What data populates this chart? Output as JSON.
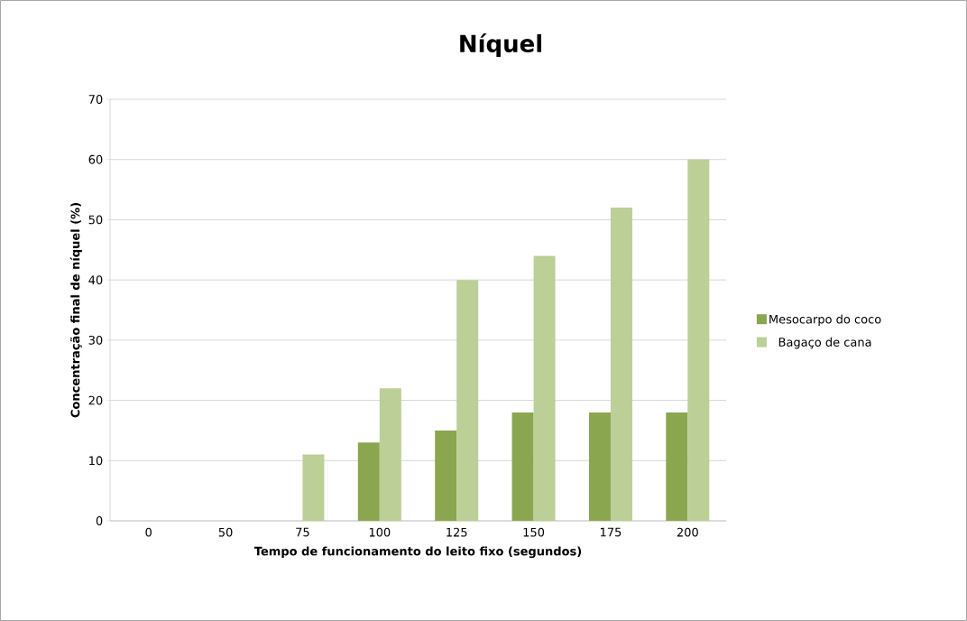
{
  "chart_data": {
    "type": "bar",
    "title": "Níquel",
    "xlabel": "Tempo de funcionamento do leito fixo  (segundos)",
    "ylabel": "Concentração final de níquel (%)",
    "categories": [
      "0",
      "50",
      "75",
      "100",
      "125",
      "150",
      "175",
      "200"
    ],
    "series": [
      {
        "name": "Mesocarpo do coco",
        "color": "#8aa64f",
        "values": [
          0,
          0,
          0,
          13,
          15,
          18,
          18,
          18
        ]
      },
      {
        "name": "Bagaço de cana",
        "color": "#bbcf97",
        "values": [
          0,
          0,
          11,
          22,
          40,
          44,
          52,
          60
        ]
      }
    ],
    "ylim": [
      0,
      70
    ],
    "yticks": [
      0,
      10,
      20,
      30,
      40,
      50,
      60,
      70
    ],
    "grid": "y",
    "legend": "right"
  }
}
